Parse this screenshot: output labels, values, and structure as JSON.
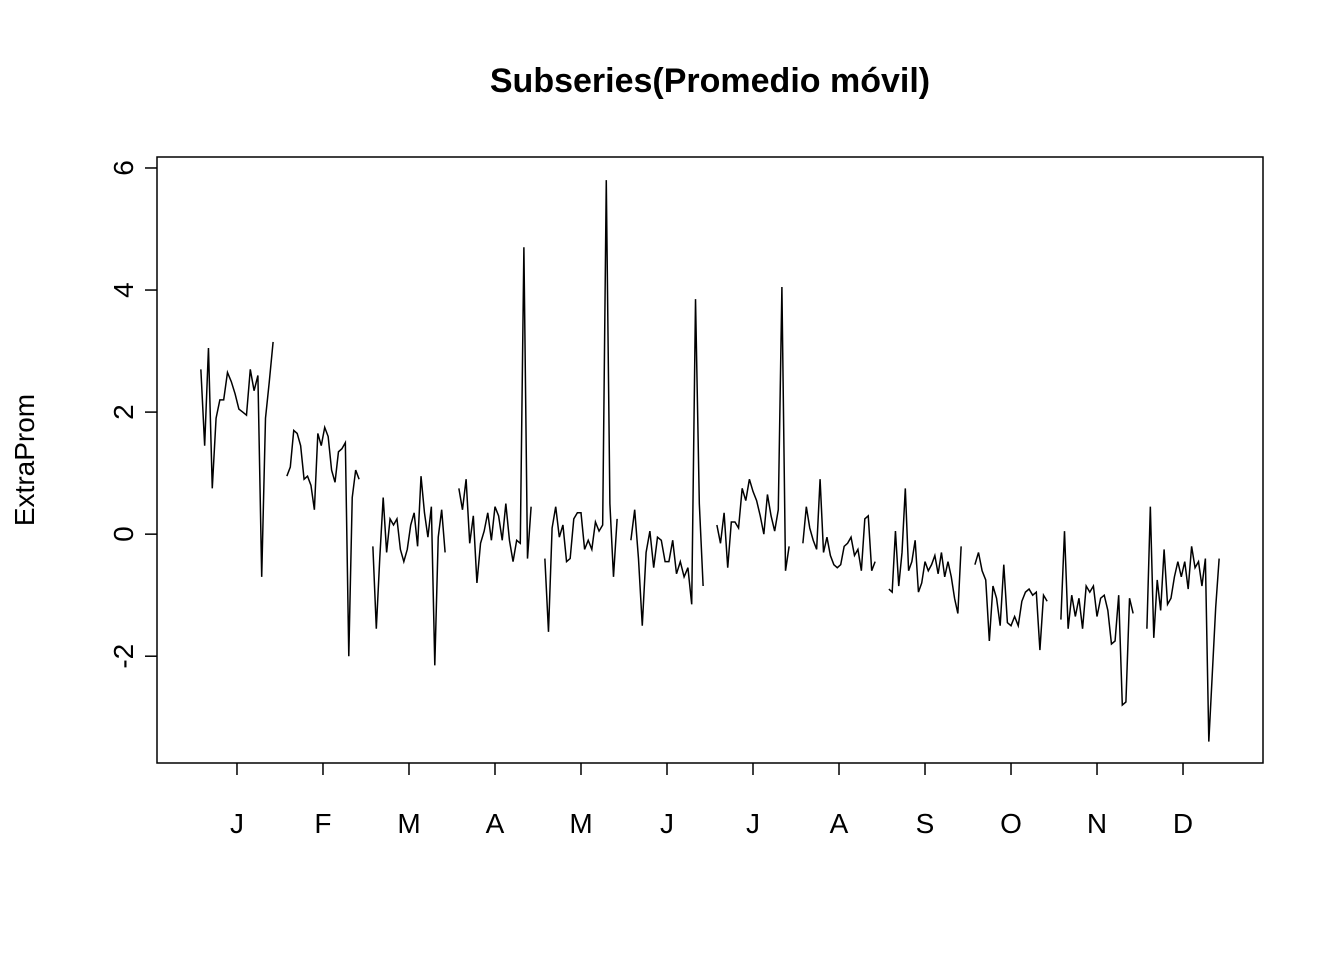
{
  "chart_data": {
    "type": "subseries",
    "title": "Subseries(Promedio móvil)",
    "ylabel": "ExtraProm",
    "color": "#000000",
    "categories": [
      "J",
      "F",
      "M",
      "A",
      "M",
      "J",
      "J",
      "A",
      "S",
      "O",
      "N",
      "D"
    ],
    "values": [
      [
        2.7,
        1.45,
        3.05,
        0.75,
        1.9,
        2.2,
        2.2,
        2.65,
        2.5,
        2.3,
        2.05,
        2.0,
        1.95,
        2.7,
        2.35,
        2.6,
        -0.7,
        1.9,
        2.5,
        3.15
      ],
      [
        0.95,
        1.1,
        1.7,
        1.65,
        1.45,
        0.9,
        0.95,
        0.8,
        0.4,
        1.65,
        1.45,
        1.75,
        1.6,
        1.05,
        0.85,
        1.35,
        1.4,
        1.5,
        -2.0,
        0.6,
        1.05,
        0.9
      ],
      [
        -0.2,
        -1.55,
        -0.4,
        0.6,
        -0.3,
        0.25,
        0.15,
        0.25,
        -0.25,
        -0.45,
        -0.25,
        0.15,
        0.35,
        -0.2,
        0.95,
        0.35,
        -0.05,
        0.45,
        -2.15,
        -0.05,
        0.4,
        -0.3
      ],
      [
        0.75,
        0.4,
        0.9,
        -0.15,
        0.3,
        -0.8,
        -0.15,
        0.05,
        0.35,
        -0.1,
        0.45,
        0.3,
        -0.1,
        0.5,
        -0.1,
        -0.45,
        -0.1,
        -0.15,
        4.7,
        -0.4,
        0.45
      ],
      [
        -0.4,
        -1.6,
        0.1,
        0.45,
        -0.05,
        0.15,
        -0.45,
        -0.4,
        0.25,
        0.35,
        0.35,
        -0.25,
        -0.1,
        -0.25,
        0.2,
        0.05,
        0.15,
        5.8,
        0.5,
        -0.7,
        0.25
      ],
      [
        -0.1,
        0.4,
        -0.4,
        -1.5,
        -0.3,
        0.05,
        -0.55,
        -0.05,
        -0.1,
        -0.45,
        -0.45,
        -0.1,
        -0.65,
        -0.45,
        -0.7,
        -0.55,
        -1.15,
        3.85,
        0.5,
        -0.85
      ],
      [
        0.15,
        -0.15,
        0.35,
        -0.55,
        0.2,
        0.2,
        0.1,
        0.75,
        0.55,
        0.9,
        0.7,
        0.55,
        0.3,
        0.0,
        0.65,
        0.3,
        0.05,
        0.4,
        4.05,
        -0.6,
        -0.2
      ],
      [
        -0.15,
        0.45,
        0.1,
        -0.1,
        -0.25,
        0.9,
        -0.3,
        -0.05,
        -0.35,
        -0.5,
        -0.55,
        -0.5,
        -0.2,
        -0.15,
        -0.05,
        -0.35,
        -0.25,
        -0.6,
        0.25,
        0.3,
        -0.6,
        -0.45
      ],
      [
        -0.9,
        -0.95,
        0.05,
        -0.85,
        -0.3,
        0.75,
        -0.6,
        -0.45,
        -0.1,
        -0.95,
        -0.8,
        -0.45,
        -0.6,
        -0.5,
        -0.35,
        -0.65,
        -0.3,
        -0.7,
        -0.45,
        -0.7,
        -1.05,
        -1.3,
        -0.2
      ],
      [
        -0.5,
        -0.3,
        -0.6,
        -0.75,
        -1.75,
        -0.85,
        -1.05,
        -1.5,
        -0.5,
        -1.45,
        -1.5,
        -1.35,
        -1.5,
        -1.1,
        -0.95,
        -0.9,
        -1.0,
        -0.95,
        -1.9,
        -1.0,
        -1.1
      ],
      [
        -1.4,
        0.05,
        -1.55,
        -1.0,
        -1.35,
        -1.05,
        -1.55,
        -0.85,
        -0.95,
        -0.85,
        -1.35,
        -1.05,
        -1.0,
        -1.25,
        -1.8,
        -1.75,
        -1.0,
        -2.8,
        -2.75,
        -1.05,
        -1.3
      ],
      [
        -1.55,
        0.45,
        -1.7,
        -0.75,
        -1.25,
        -0.25,
        -1.15,
        -1.05,
        -0.7,
        -0.45,
        -0.7,
        -0.45,
        -0.9,
        -0.2,
        -0.55,
        -0.45,
        -0.85,
        -0.4,
        -3.4,
        -2.3,
        -1.2,
        -0.4
      ]
    ],
    "ylim": [
      -3.75,
      6.18
    ],
    "yticks": [
      -2,
      0,
      2,
      4,
      6
    ]
  }
}
